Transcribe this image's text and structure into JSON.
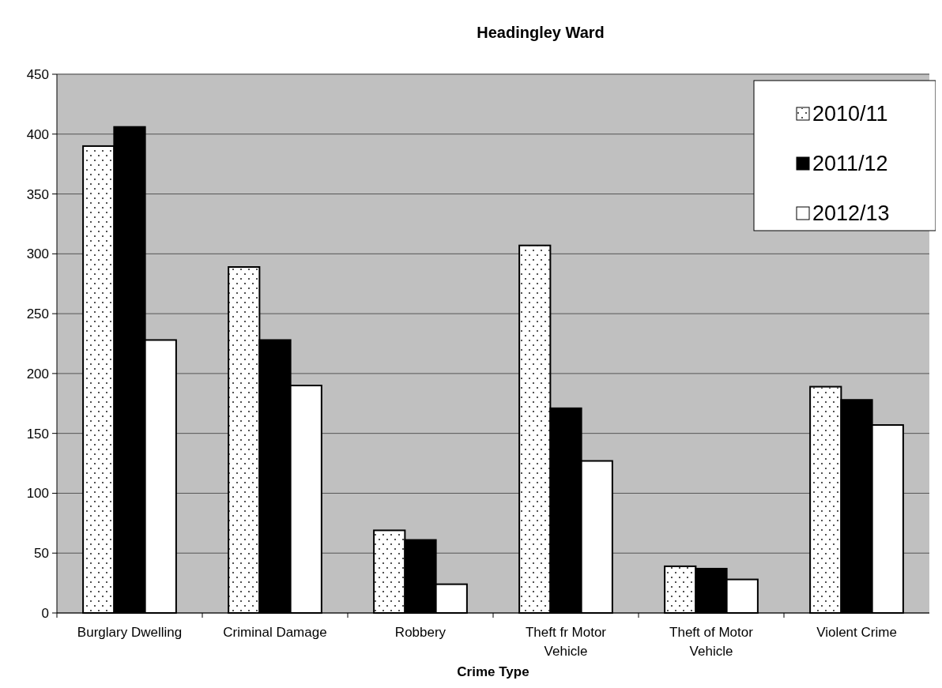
{
  "chart_data": {
    "type": "bar",
    "title": "Headingley Ward",
    "xlabel": "Crime Type",
    "categories": [
      "Burglary Dwelling",
      "Criminal Damage",
      "Robbery",
      "Theft fr Motor Vehicle",
      "Theft of Motor Vehicle",
      "Violent Crime"
    ],
    "series": [
      {
        "name": "2010/11",
        "color": "#ffffff",
        "values": [
          390,
          289,
          69,
          307,
          39,
          189
        ]
      },
      {
        "name": "2011/12",
        "color": "#000000",
        "values": [
          406,
          228,
          61,
          171,
          37,
          178
        ]
      },
      {
        "name": "2012/13",
        "color": "#ffffff",
        "values": [
          228,
          190,
          24,
          127,
          28,
          157
        ]
      }
    ],
    "ylim": [
      0,
      450
    ],
    "yticks": [
      0,
      50,
      100,
      150,
      200,
      250,
      300,
      350,
      400,
      450
    ],
    "grid": "y",
    "legend": "top right"
  }
}
